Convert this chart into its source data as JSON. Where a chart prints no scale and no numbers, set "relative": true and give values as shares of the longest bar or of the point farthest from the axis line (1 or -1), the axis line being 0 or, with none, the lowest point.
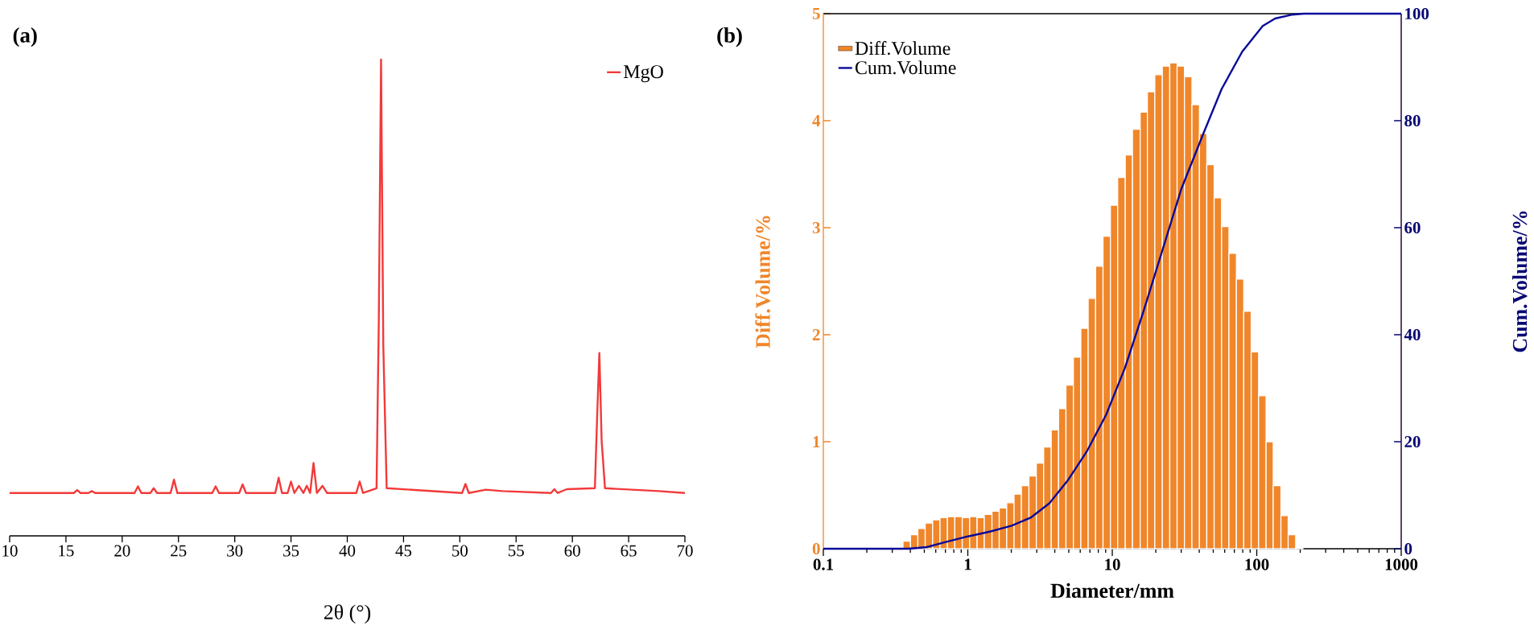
{
  "chart_data": [
    {
      "type": "line",
      "title": "(a)",
      "xlabel": "2θ (°)",
      "relative": true,
      "legend": "top right",
      "tick_labels": "x",
      "xlim": [
        10,
        70
      ],
      "xticks": [
        10,
        15,
        20,
        25,
        30,
        35,
        40,
        45,
        50,
        55,
        60,
        65,
        70
      ],
      "x": [
        10,
        15.7,
        16.0,
        16.3,
        17.0,
        17.3,
        17.6,
        21.1,
        21.4,
        21.7,
        22.5,
        22.8,
        23.1,
        24.3,
        24.6,
        24.9,
        28.0,
        28.3,
        28.6,
        30.4,
        30.7,
        31.0,
        33.6,
        33.9,
        34.2,
        34.7,
        35.0,
        35.3,
        35.7,
        36.1,
        36.4,
        36.7,
        37.0,
        37.3,
        37.8,
        38.2,
        40.8,
        41.1,
        41.4,
        42.6,
        42.8,
        43.0,
        43.2,
        43.5,
        50.2,
        50.5,
        50.8,
        52.3,
        53.8,
        58.1,
        58.4,
        58.7,
        59.5,
        62.0,
        62.2,
        62.4,
        62.6,
        62.9,
        67.7,
        70
      ],
      "series": [
        {
          "name": "MgO",
          "color": "#f23a3a",
          "values": [
            0.09,
            0.09,
            0.096,
            0.09,
            0.09,
            0.094,
            0.09,
            0.09,
            0.104,
            0.09,
            0.09,
            0.1,
            0.09,
            0.09,
            0.118,
            0.09,
            0.09,
            0.104,
            0.09,
            0.09,
            0.108,
            0.09,
            0.09,
            0.122,
            0.09,
            0.09,
            0.114,
            0.09,
            0.105,
            0.09,
            0.105,
            0.09,
            0.153,
            0.09,
            0.105,
            0.09,
            0.09,
            0.114,
            0.09,
            0.1,
            0.45,
            1.0,
            0.4,
            0.1,
            0.09,
            0.109,
            0.09,
            0.097,
            0.094,
            0.09,
            0.098,
            0.09,
            0.098,
            0.1,
            0.25,
            0.384,
            0.2,
            0.1,
            0.094,
            0.09
          ]
        }
      ]
    },
    {
      "type": "histogram",
      "title": "(b)",
      "xlabel": "Diameter/mm",
      "ylabel": "Diff.Volume/%",
      "y2label": "Cum.Volume/%",
      "log": "x",
      "legend": "top left",
      "xlim": [
        0.1,
        1000
      ],
      "xticks": [
        0.1,
        1,
        10,
        100,
        1000
      ],
      "ylim": [
        0,
        5
      ],
      "yticks": [
        0,
        1,
        2,
        3,
        4,
        5
      ],
      "y2lim": [
        0,
        100
      ],
      "y2ticks": [
        0,
        20,
        40,
        60,
        80,
        100
      ],
      "bins": [
        0.316,
        0.356,
        0.401,
        0.451,
        0.507,
        0.571,
        0.642,
        0.723,
        0.813,
        0.915,
        1.03,
        1.16,
        1.3,
        1.47,
        1.65,
        1.86,
        2.09,
        2.35,
        2.65,
        2.98,
        3.35,
        3.78,
        4.25,
        4.78,
        5.38,
        6.06,
        6.81,
        7.67,
        8.63,
        9.71,
        10.9,
        12.3,
        13.8,
        15.6,
        17.5,
        19.7,
        22.2,
        25.0,
        28.1,
        31.6,
        35.6,
        40.1,
        45.1,
        50.7,
        57.1,
        64.2,
        72.3,
        81.3,
        91.5,
        103,
        116,
        130,
        147,
        165,
        186,
        209
      ],
      "series": [
        {
          "name": "Diff.Volume",
          "color": "#f0862a",
          "values": [
            0.01,
            0.07,
            0.13,
            0.19,
            0.24,
            0.27,
            0.29,
            0.3,
            0.3,
            0.29,
            0.3,
            0.29,
            0.32,
            0.35,
            0.38,
            0.43,
            0.51,
            0.59,
            0.68,
            0.8,
            0.95,
            1.11,
            1.31,
            1.53,
            1.79,
            2.06,
            2.34,
            2.64,
            2.92,
            3.21,
            3.47,
            3.68,
            3.92,
            4.08,
            4.27,
            4.43,
            4.51,
            4.54,
            4.51,
            4.41,
            4.15,
            3.88,
            3.59,
            3.28,
            3.01,
            2.76,
            2.52,
            2.22,
            1.84,
            1.43,
            1.0,
            0.59,
            0.31,
            0.13,
            0.01
          ]
        },
        {
          "name": "Cum.Volume",
          "type": "line",
          "axis": "y2",
          "color": "#0a0a9a",
          "x": [
            0.1,
            0.386,
            0.52,
            0.67,
            1,
            1.42,
            2.01,
            2.72,
            3.67,
            4.96,
            6.7,
            9.05,
            12.2,
            16.5,
            22.3,
            30.1,
            42.7,
            57.1,
            79.3,
            110,
            134,
            174,
            212,
            1000
          ],
          "values": [
            0,
            0,
            0.3,
            1.1,
            2.3,
            3.2,
            4.3,
            5.8,
            8.5,
            12.9,
            18.3,
            25.0,
            33.7,
            44.5,
            55.9,
            67.3,
            77.6,
            85.9,
            92.9,
            97.7,
            99.1,
            99.8,
            100,
            100
          ]
        }
      ]
    }
  ]
}
